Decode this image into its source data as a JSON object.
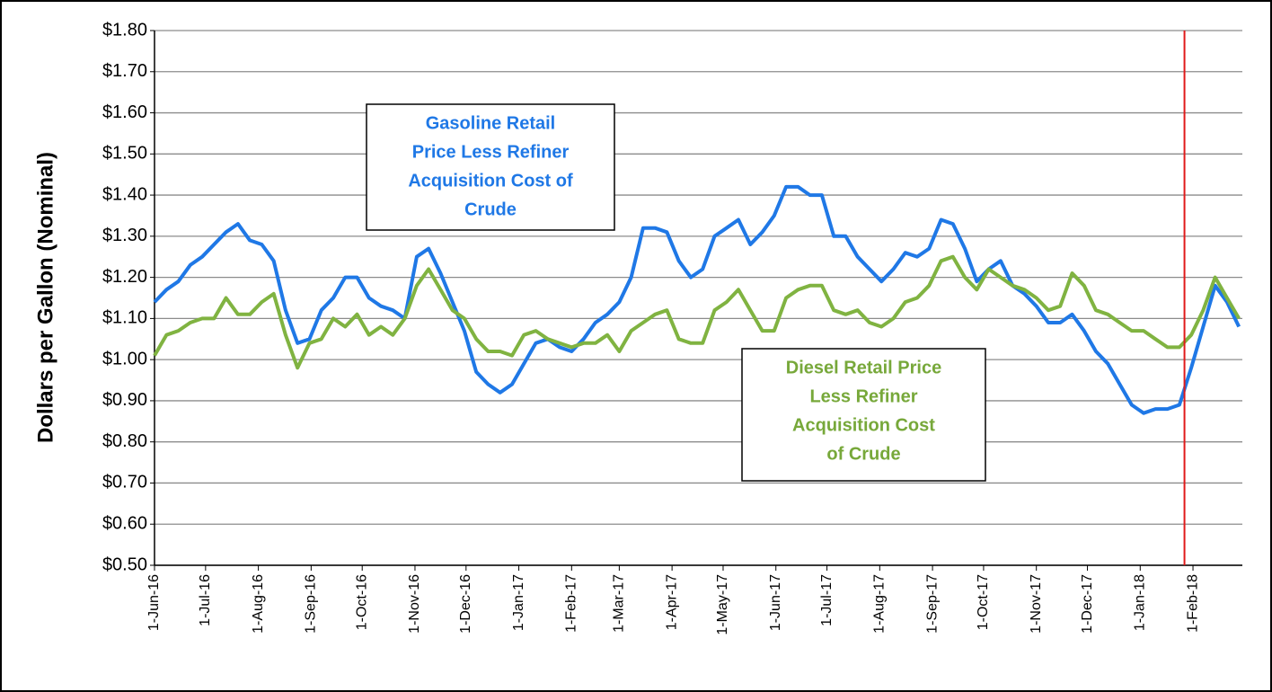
{
  "chart_data": {
    "type": "line",
    "y_label": "Dollars per Gallon (Nominal)",
    "x": [
      "2016-06-01",
      "2016-06-08",
      "2016-06-15",
      "2016-06-22",
      "2016-06-29",
      "2016-07-06",
      "2016-07-13",
      "2016-07-20",
      "2016-07-27",
      "2016-08-03",
      "2016-08-10",
      "2016-08-17",
      "2016-08-24",
      "2016-08-31",
      "2016-09-07",
      "2016-09-14",
      "2016-09-21",
      "2016-09-28",
      "2016-10-05",
      "2016-10-12",
      "2016-10-19",
      "2016-10-26",
      "2016-11-02",
      "2016-11-09",
      "2016-11-16",
      "2016-11-23",
      "2016-11-30",
      "2016-12-07",
      "2016-12-14",
      "2016-12-21",
      "2016-12-28",
      "2017-01-04",
      "2017-01-11",
      "2017-01-18",
      "2017-01-25",
      "2017-02-01",
      "2017-02-08",
      "2017-02-15",
      "2017-02-22",
      "2017-03-01",
      "2017-03-08",
      "2017-03-15",
      "2017-03-22",
      "2017-03-29",
      "2017-04-05",
      "2017-04-12",
      "2017-04-19",
      "2017-04-26",
      "2017-05-03",
      "2017-05-10",
      "2017-05-17",
      "2017-05-24",
      "2017-05-31",
      "2017-06-07",
      "2017-06-14",
      "2017-06-21",
      "2017-06-28",
      "2017-07-05",
      "2017-07-12",
      "2017-07-19",
      "2017-07-26",
      "2017-08-02",
      "2017-08-09",
      "2017-08-16",
      "2017-08-23",
      "2017-08-30",
      "2017-09-06",
      "2017-09-13",
      "2017-09-20",
      "2017-09-27",
      "2017-10-04",
      "2017-10-11",
      "2017-10-18",
      "2017-10-25",
      "2017-11-01",
      "2017-11-08",
      "2017-11-15",
      "2017-11-22",
      "2017-11-29",
      "2017-12-06",
      "2017-12-13",
      "2017-12-20",
      "2017-12-27",
      "2018-01-03",
      "2018-01-10",
      "2018-01-17",
      "2018-01-24",
      "2018-01-31",
      "2018-02-07",
      "2018-02-14",
      "2018-02-21",
      "2018-02-28"
    ],
    "series": [
      {
        "name": "Gasoline Retail Price Less Refiner Acquisition Cost of Crude",
        "color": "#1f78e6",
        "values": [
          1.14,
          1.17,
          1.19,
          1.23,
          1.25,
          1.28,
          1.31,
          1.33,
          1.29,
          1.28,
          1.24,
          1.12,
          1.04,
          1.05,
          1.12,
          1.15,
          1.2,
          1.2,
          1.15,
          1.13,
          1.12,
          1.1,
          1.25,
          1.27,
          1.21,
          1.14,
          1.07,
          0.97,
          0.94,
          0.92,
          0.94,
          0.99,
          1.04,
          1.05,
          1.03,
          1.02,
          1.05,
          1.09,
          1.11,
          1.14,
          1.2,
          1.32,
          1.32,
          1.31,
          1.24,
          1.2,
          1.22,
          1.3,
          1.32,
          1.34,
          1.28,
          1.31,
          1.35,
          1.42,
          1.42,
          1.4,
          1.4,
          1.3,
          1.3,
          1.25,
          1.22,
          1.19,
          1.22,
          1.26,
          1.25,
          1.27,
          1.34,
          1.33,
          1.27,
          1.19,
          1.22,
          1.24,
          1.18,
          1.16,
          1.13,
          1.09,
          1.09,
          1.11,
          1.07,
          1.02,
          0.99,
          0.94,
          0.89,
          0.87,
          0.88,
          0.88,
          0.89,
          0.98,
          1.08,
          1.18,
          1.14,
          1.08
        ]
      },
      {
        "name": "Diesel Retail Price Less Refiner Acquisition Cost of Crude",
        "color": "#80b341",
        "values": [
          1.01,
          1.06,
          1.07,
          1.09,
          1.1,
          1.1,
          1.15,
          1.11,
          1.11,
          1.14,
          1.16,
          1.06,
          0.98,
          1.04,
          1.05,
          1.1,
          1.08,
          1.11,
          1.06,
          1.08,
          1.06,
          1.1,
          1.18,
          1.22,
          1.17,
          1.12,
          1.1,
          1.05,
          1.02,
          1.02,
          1.01,
          1.06,
          1.07,
          1.05,
          1.04,
          1.03,
          1.04,
          1.04,
          1.06,
          1.02,
          1.07,
          1.09,
          1.11,
          1.12,
          1.05,
          1.04,
          1.04,
          1.12,
          1.14,
          1.17,
          1.12,
          1.07,
          1.07,
          1.15,
          1.17,
          1.18,
          1.18,
          1.12,
          1.11,
          1.12,
          1.09,
          1.08,
          1.1,
          1.14,
          1.15,
          1.18,
          1.24,
          1.25,
          1.2,
          1.17,
          1.22,
          1.2,
          1.18,
          1.17,
          1.15,
          1.12,
          1.13,
          1.21,
          1.18,
          1.12,
          1.11,
          1.09,
          1.07,
          1.07,
          1.05,
          1.03,
          1.03,
          1.06,
          1.12,
          1.2,
          1.15,
          1.1
        ]
      }
    ],
    "annotations": [
      {
        "lines": [
          "Gasoline Retail",
          "Price Less Refiner",
          "Acquisition Cost of",
          "Crude"
        ],
        "color": "#1f78e6"
      },
      {
        "lines": [
          "Diesel Retail Price",
          "Less Refiner",
          "Acquisition Cost",
          "of Crude"
        ],
        "color": "#77a83a"
      }
    ],
    "reference_line": {
      "x": "2018-01-27",
      "color": "#e01a1a"
    },
    "xlim": [
      "2016-06-01",
      "2018-03-02"
    ],
    "xticks": [
      {
        "value": "2016-06-01",
        "label": "1-Jun-16"
      },
      {
        "value": "2016-07-01",
        "label": "1-Jul-16"
      },
      {
        "value": "2016-08-01",
        "label": "1-Aug-16"
      },
      {
        "value": "2016-09-01",
        "label": "1-Sep-16"
      },
      {
        "value": "2016-10-01",
        "label": "1-Oct-16"
      },
      {
        "value": "2016-11-01",
        "label": "1-Nov-16"
      },
      {
        "value": "2016-12-01",
        "label": "1-Dec-16"
      },
      {
        "value": "2017-01-01",
        "label": "1-Jan-17"
      },
      {
        "value": "2017-02-01",
        "label": "1-Feb-17"
      },
      {
        "value": "2017-03-01",
        "label": "1-Mar-17"
      },
      {
        "value": "2017-04-01",
        "label": "1-Apr-17"
      },
      {
        "value": "2017-05-01",
        "label": "1-May-17"
      },
      {
        "value": "2017-06-01",
        "label": "1-Jun-17"
      },
      {
        "value": "2017-07-01",
        "label": "1-Jul-17"
      },
      {
        "value": "2017-08-01",
        "label": "1-Aug-17"
      },
      {
        "value": "2017-09-01",
        "label": "1-Sep-17"
      },
      {
        "value": "2017-10-01",
        "label": "1-Oct-17"
      },
      {
        "value": "2017-11-01",
        "label": "1-Nov-17"
      },
      {
        "value": "2017-12-01",
        "label": "1-Dec-17"
      },
      {
        "value": "2018-01-01",
        "label": "1-Jan-18"
      },
      {
        "value": "2018-02-01",
        "label": "1-Feb-18"
      }
    ],
    "ylim": [
      0.5,
      1.8
    ],
    "yticks": [
      {
        "value": 0.5,
        "label": "$0.50"
      },
      {
        "value": 0.6,
        "label": "$0.60"
      },
      {
        "value": 0.7,
        "label": "$0.70"
      },
      {
        "value": 0.8,
        "label": "$0.80"
      },
      {
        "value": 0.9,
        "label": "$0.90"
      },
      {
        "value": 1.0,
        "label": "$1.00"
      },
      {
        "value": 1.1,
        "label": "$1.10"
      },
      {
        "value": 1.2,
        "label": "$1.20"
      },
      {
        "value": 1.3,
        "label": "$1.30"
      },
      {
        "value": 1.4,
        "label": "$1.40"
      },
      {
        "value": 1.5,
        "label": "$1.50"
      },
      {
        "value": 1.6,
        "label": "$1.60"
      },
      {
        "value": 1.7,
        "label": "$1.70"
      },
      {
        "value": 1.8,
        "label": "$1.80"
      }
    ],
    "grid": true
  }
}
